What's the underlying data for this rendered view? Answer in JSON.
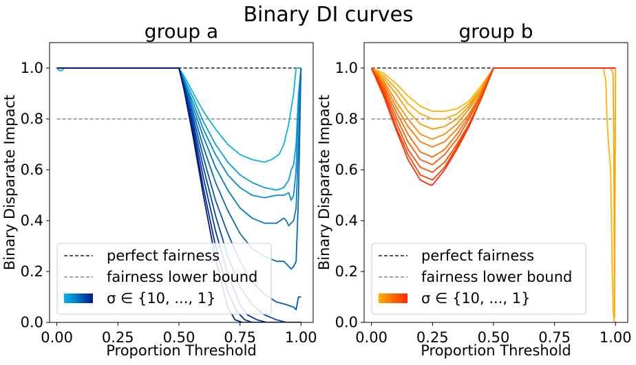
{
  "figure_title": "Binary DI curves",
  "chart_data": [
    {
      "type": "line",
      "title": "group a",
      "xlabel": "Proportion Threshold",
      "ylabel": "Binary Disparate Impact",
      "xlim": [
        -0.03,
        1.05
      ],
      "ylim": [
        0,
        1.1
      ],
      "xticks": [
        0.0,
        0.25,
        0.5,
        0.75,
        1.0
      ],
      "xtick_labels": [
        "0.00",
        "0.25",
        "0.50",
        "0.75",
        "1.00"
      ],
      "yticks": [
        0.0,
        0.2,
        0.4,
        0.6,
        0.8,
        1.0
      ],
      "ytick_labels": [
        "0.0",
        "0.2",
        "0.4",
        "0.6",
        "0.8",
        "1.0"
      ],
      "grid": false,
      "reference_lines": [
        {
          "label": "perfect fairness",
          "y": 1.0,
          "x_range": [
            0.0,
            1.0
          ],
          "color": "#222222",
          "style": "dashed"
        },
        {
          "label": "fairness lower bound",
          "y": 0.8,
          "x_range": [
            0.0,
            1.0
          ],
          "color": "#888888",
          "style": "dashed"
        }
      ],
      "legend": {
        "position": "lower-left",
        "entries": [
          "perfect fairness",
          "fairness lower bound",
          "σ ∈ {10, ..., 1}"
        ],
        "colormap": [
          "#00b4e6",
          "#0096d6",
          "#0070c0",
          "#0040a8",
          "#001a8c"
        ]
      },
      "series": [
        {
          "color": "#0ab3de",
          "x": [
            0,
            0.01,
            0.02,
            0.03,
            0.5,
            0.52,
            0.56,
            0.6,
            0.65,
            0.7,
            0.75,
            0.8,
            0.85,
            0.88,
            0.91,
            0.93,
            0.95,
            0.97,
            0.98,
            1.0
          ],
          "y": [
            1.0,
            0.99,
            0.99,
            1.0,
            1.0,
            0.97,
            0.9,
            0.83,
            0.76,
            0.7,
            0.66,
            0.64,
            0.63,
            0.64,
            0.66,
            0.7,
            0.78,
            0.9,
            1.0,
            1.0
          ]
        },
        {
          "color": "#069fd6",
          "x": [
            0,
            0.5,
            0.52,
            0.56,
            0.6,
            0.65,
            0.7,
            0.75,
            0.8,
            0.85,
            0.9,
            0.93,
            0.95,
            0.96,
            0.97,
            0.98,
            0.99,
            1.0
          ],
          "y": [
            1.0,
            1.0,
            0.96,
            0.88,
            0.79,
            0.7,
            0.63,
            0.58,
            0.55,
            0.53,
            0.52,
            0.53,
            0.56,
            0.6,
            0.62,
            0.7,
            0.9,
            1.0
          ]
        },
        {
          "color": "#058ccc",
          "x": [
            0,
            0.5,
            0.52,
            0.56,
            0.6,
            0.65,
            0.7,
            0.75,
            0.8,
            0.85,
            0.9,
            0.93,
            0.95,
            0.96,
            0.97,
            0.98,
            0.99,
            1.0
          ],
          "y": [
            1.0,
            1.0,
            0.95,
            0.86,
            0.76,
            0.66,
            0.58,
            0.53,
            0.5,
            0.49,
            0.5,
            0.5,
            0.51,
            0.48,
            0.5,
            0.6,
            0.85,
            1.0
          ]
        },
        {
          "color": "#0478c2",
          "x": [
            0,
            0.5,
            0.52,
            0.56,
            0.6,
            0.65,
            0.7,
            0.75,
            0.8,
            0.85,
            0.9,
            0.93,
            0.94,
            0.95,
            0.97,
            0.98,
            0.99,
            1.0
          ],
          "y": [
            1.0,
            1.0,
            0.95,
            0.84,
            0.73,
            0.61,
            0.52,
            0.45,
            0.41,
            0.39,
            0.39,
            0.41,
            0.4,
            0.38,
            0.4,
            0.45,
            0.7,
            1.0
          ]
        },
        {
          "color": "#0367b8",
          "x": [
            0,
            0.5,
            0.52,
            0.56,
            0.6,
            0.65,
            0.7,
            0.75,
            0.8,
            0.85,
            0.9,
            0.93,
            0.95,
            0.96,
            0.97,
            0.98,
            0.99,
            1.0
          ],
          "y": [
            1.0,
            1.0,
            0.94,
            0.82,
            0.69,
            0.55,
            0.44,
            0.35,
            0.29,
            0.26,
            0.24,
            0.24,
            0.22,
            0.21,
            0.22,
            0.24,
            0.5,
            1.0
          ]
        },
        {
          "color": "#0256ad",
          "x": [
            0,
            0.5,
            0.52,
            0.56,
            0.6,
            0.65,
            0.7,
            0.75,
            0.8,
            0.85,
            0.9,
            0.94,
            0.97,
            0.98,
            0.99,
            1.0
          ],
          "y": [
            1.0,
            1.0,
            0.94,
            0.8,
            0.65,
            0.48,
            0.35,
            0.24,
            0.16,
            0.11,
            0.08,
            0.07,
            0.06,
            0.05,
            0.1,
            0.1
          ]
        },
        {
          "color": "#0245a3",
          "x": [
            0,
            0.5,
            0.52,
            0.56,
            0.6,
            0.65,
            0.7,
            0.75,
            0.8,
            0.85,
            0.9,
            0.94,
            0.97,
            1.0
          ],
          "y": [
            1.0,
            1.0,
            0.93,
            0.78,
            0.61,
            0.42,
            0.26,
            0.14,
            0.07,
            0.03,
            0.01,
            0.0,
            0.0,
            0.0
          ]
        },
        {
          "color": "#013599",
          "x": [
            0,
            0.5,
            0.52,
            0.56,
            0.6,
            0.65,
            0.7,
            0.75,
            0.78,
            0.82,
            0.86,
            0.9,
            0.95,
            1.0
          ],
          "y": [
            1.0,
            1.0,
            0.93,
            0.76,
            0.57,
            0.36,
            0.19,
            0.07,
            0.03,
            0.01,
            0.0,
            0.0,
            0.0,
            0.0
          ]
        },
        {
          "color": "#01258f",
          "x": [
            0,
            0.5,
            0.52,
            0.56,
            0.6,
            0.65,
            0.7,
            0.74,
            0.77,
            0.8,
            0.83,
            0.9,
            1.0
          ],
          "y": [
            1.0,
            1.0,
            0.92,
            0.74,
            0.53,
            0.3,
            0.12,
            0.04,
            0.01,
            0.0,
            0.0,
            0.0,
            0.0
          ]
        },
        {
          "color": "#001585",
          "x": [
            0,
            0.5,
            0.52,
            0.56,
            0.6,
            0.65,
            0.7,
            0.73,
            0.76,
            0.79,
            0.85,
            1.0
          ],
          "y": [
            1.0,
            1.0,
            0.92,
            0.72,
            0.5,
            0.25,
            0.06,
            0.01,
            0.0,
            0.0,
            0.0,
            0.0
          ]
        }
      ]
    },
    {
      "type": "line",
      "title": "group b",
      "xlabel": "Proportion Threshold",
      "ylabel": "Binary Disparate Impact",
      "xlim": [
        -0.03,
        1.05
      ],
      "ylim": [
        0,
        1.1
      ],
      "xticks": [
        0.0,
        0.25,
        0.5,
        0.75,
        1.0
      ],
      "xtick_labels": [
        "0.00",
        "0.25",
        "0.50",
        "0.75",
        "1.00"
      ],
      "yticks": [
        0.0,
        0.2,
        0.4,
        0.6,
        0.8,
        1.0
      ],
      "ytick_labels": [
        "0.0",
        "0.2",
        "0.4",
        "0.6",
        "0.8",
        "1.0"
      ],
      "grid": false,
      "reference_lines": [
        {
          "label": "perfect fairness",
          "y": 1.0,
          "x_range": [
            0.0,
            0.5
          ],
          "color": "#222222",
          "style": "dashed"
        },
        {
          "label": "fairness lower bound",
          "y": 0.8,
          "x_range": [
            0.0,
            1.0
          ],
          "color": "#888888",
          "style": "dashed"
        }
      ],
      "legend": {
        "position": "lower-left",
        "entries": [
          "perfect fairness",
          "fairness lower bound",
          "σ ∈ {10, ..., 1}"
        ],
        "colormap": [
          "#ffb000",
          "#ff8c00",
          "#ff6a00",
          "#ff4a00",
          "#ff2a00"
        ]
      },
      "series": [
        {
          "color": "#ffb200",
          "x": [
            0,
            0.05,
            0.1,
            0.15,
            0.2,
            0.25,
            0.3,
            0.35,
            0.4,
            0.45,
            0.5,
            0.6,
            0.7,
            0.8,
            0.9,
            0.94,
            0.95,
            0.96,
            0.965,
            0.97,
            0.98,
            0.985,
            0.99,
            0.995,
            1.0
          ],
          "y": [
            1.0,
            0.98,
            0.94,
            0.89,
            0.85,
            0.83,
            0.83,
            0.84,
            0.87,
            0.93,
            1.0,
            1.0,
            1.0,
            1.0,
            1.0,
            1.0,
            1.0,
            0.95,
            0.8,
            0.72,
            0.6,
            0.3,
            0.05,
            0.0,
            0.0
          ]
        },
        {
          "color": "#ffa500",
          "x": [
            0,
            0.05,
            0.1,
            0.15,
            0.2,
            0.25,
            0.3,
            0.35,
            0.4,
            0.45,
            0.5,
            0.7,
            0.9,
            0.98,
            0.99,
            0.993,
            0.996,
            1.0
          ],
          "y": [
            1.0,
            0.97,
            0.92,
            0.86,
            0.82,
            0.8,
            0.8,
            0.82,
            0.86,
            0.92,
            1.0,
            1.0,
            1.0,
            1.0,
            0.98,
            0.7,
            0.02,
            1.0
          ]
        },
        {
          "color": "#ff9600",
          "x": [
            0,
            0.05,
            0.1,
            0.15,
            0.2,
            0.25,
            0.3,
            0.35,
            0.4,
            0.45,
            0.5,
            1.0
          ],
          "y": [
            1.0,
            0.96,
            0.9,
            0.83,
            0.78,
            0.76,
            0.77,
            0.8,
            0.85,
            0.92,
            1.0,
            1.0
          ]
        },
        {
          "color": "#ff8700",
          "x": [
            0,
            0.05,
            0.1,
            0.15,
            0.2,
            0.25,
            0.3,
            0.35,
            0.4,
            0.45,
            0.5,
            1.0
          ],
          "y": [
            1.0,
            0.95,
            0.87,
            0.8,
            0.74,
            0.72,
            0.74,
            0.78,
            0.84,
            0.91,
            1.0,
            1.0
          ]
        },
        {
          "color": "#ff7800",
          "x": [
            0,
            0.05,
            0.1,
            0.15,
            0.2,
            0.25,
            0.3,
            0.35,
            0.4,
            0.45,
            0.5,
            1.0
          ],
          "y": [
            1.0,
            0.94,
            0.85,
            0.77,
            0.71,
            0.69,
            0.71,
            0.76,
            0.82,
            0.9,
            1.0,
            1.0
          ]
        },
        {
          "color": "#ff6900",
          "x": [
            0,
            0.05,
            0.1,
            0.15,
            0.2,
            0.25,
            0.3,
            0.35,
            0.4,
            0.45,
            0.5,
            1.0
          ],
          "y": [
            1.0,
            0.93,
            0.83,
            0.74,
            0.67,
            0.65,
            0.68,
            0.74,
            0.81,
            0.9,
            1.0,
            1.0
          ]
        },
        {
          "color": "#ff5a00",
          "x": [
            0,
            0.05,
            0.1,
            0.15,
            0.2,
            0.25,
            0.3,
            0.35,
            0.4,
            0.45,
            0.5,
            1.0
          ],
          "y": [
            1.0,
            0.92,
            0.81,
            0.71,
            0.64,
            0.62,
            0.66,
            0.72,
            0.8,
            0.89,
            1.0,
            1.0
          ]
        },
        {
          "color": "#ff4b00",
          "x": [
            0,
            0.05,
            0.1,
            0.15,
            0.2,
            0.25,
            0.3,
            0.35,
            0.4,
            0.45,
            0.5,
            1.0
          ],
          "y": [
            1.0,
            0.91,
            0.79,
            0.68,
            0.61,
            0.59,
            0.63,
            0.7,
            0.78,
            0.88,
            1.0,
            1.0
          ]
        },
        {
          "color": "#ff3c00",
          "x": [
            0,
            0.05,
            0.1,
            0.15,
            0.2,
            0.25,
            0.3,
            0.35,
            0.4,
            0.45,
            0.5,
            1.0
          ],
          "y": [
            1.0,
            0.9,
            0.77,
            0.66,
            0.58,
            0.56,
            0.61,
            0.69,
            0.78,
            0.88,
            1.0,
            1.0
          ]
        },
        {
          "color": "#ff2d00",
          "x": [
            0,
            0.05,
            0.1,
            0.15,
            0.2,
            0.24,
            0.25,
            0.3,
            0.35,
            0.4,
            0.45,
            0.5,
            1.0
          ],
          "y": [
            1.0,
            0.89,
            0.76,
            0.64,
            0.56,
            0.54,
            0.54,
            0.6,
            0.68,
            0.77,
            0.88,
            1.0,
            1.0
          ]
        }
      ]
    }
  ]
}
